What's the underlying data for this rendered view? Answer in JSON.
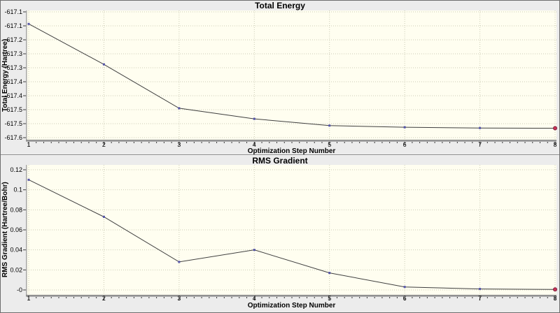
{
  "window": {
    "background": "#ececec",
    "border_color": "#6e6e6e"
  },
  "colors": {
    "plot_background": "#fffef0",
    "grid": "#ccccb6",
    "axis": "#a8a8a8",
    "axis_edge": "#7c7c7c",
    "tick": "#3a3a3a",
    "line": "#3f3f3f",
    "marker": "#5353a8",
    "last_point_marker": "#cc3355",
    "last_point_ring": "#7a2040",
    "text": "#000000"
  },
  "chart_data": [
    {
      "type": "line",
      "title": "Total Energy",
      "xlabel": "Optimization Step Number",
      "ylabel": "Total Energy (Hartree)",
      "x": [
        1,
        2,
        3,
        4,
        5,
        6,
        7,
        8
      ],
      "values": [
        -617.13,
        -617.298,
        -617.48,
        -617.524,
        -617.552,
        -617.559,
        -617.562,
        -617.563
      ],
      "xlim": [
        1,
        8
      ],
      "ylim": [
        -617.602,
        -617.08
      ],
      "x_tick_labels": [
        "1",
        "2",
        "3",
        "4",
        "5",
        "6",
        "7",
        "8"
      ],
      "y_tick_labels": [
        "-617.1",
        "-617.1",
        "-617.2",
        "-617.3",
        "-617.3",
        "-617.4",
        "-617.4",
        "-617.5",
        "-617.5",
        "-617.6"
      ],
      "grid": true,
      "legend": "none",
      "marker": "square",
      "highlight_last_point": true,
      "minor_x_subdivisions": 10
    },
    {
      "type": "line",
      "title": "RMS Gradient",
      "xlabel": "Optimization Step Number",
      "ylabel": "RMS Gradient (Hartree/Bohr)",
      "x": [
        1,
        2,
        3,
        4,
        5,
        6,
        7,
        8
      ],
      "values": [
        0.11,
        0.073,
        0.028,
        0.04,
        0.017,
        0.003,
        0.001,
        0.0005
      ],
      "xlim": [
        1,
        8
      ],
      "ylim": [
        0,
        0.12
      ],
      "x_tick_labels": [
        "1",
        "2",
        "3",
        "4",
        "5",
        "6",
        "7",
        "8"
      ],
      "y_tick_labels": [
        "0.12",
        "0.1",
        "0.08",
        "0.06",
        "0.04",
        "0.02",
        "-0"
      ],
      "grid": true,
      "legend": "none",
      "marker": "square",
      "highlight_last_point": true,
      "minor_x_subdivisions": 10
    }
  ]
}
